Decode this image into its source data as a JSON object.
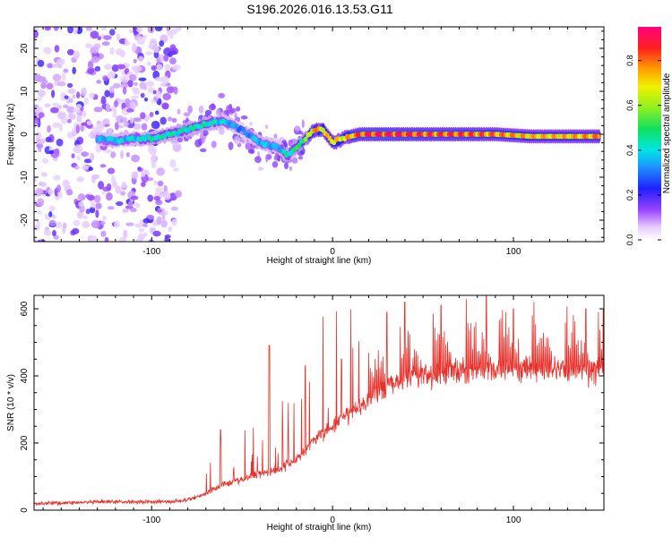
{
  "title": "S196.2026.016.13.53.G11",
  "colors": {
    "snr_line": "#e8302a",
    "axis": "#000000",
    "colormap": [
      "#f2e6ff",
      "#c8a4f0",
      "#7b2de0",
      "#2d1cd8",
      "#1890f0",
      "#20e0e0",
      "#30e870",
      "#b8f020",
      "#f0e020",
      "#f08a20",
      "#f02020",
      "#f0106a"
    ]
  },
  "chart_data": [
    {
      "type": "heatmap",
      "name": "spectrogram",
      "xlabel": "Height of straight line (km)",
      "ylabel": "Frequency (Hz)",
      "xlim": [
        -165,
        150
      ],
      "ylim": [
        -25,
        25
      ],
      "xticks": [
        -100,
        0,
        100
      ],
      "yticks": [
        -20,
        -10,
        0,
        10,
        20
      ],
      "colorbar": {
        "label": "Normalized spectral amplitude",
        "range": [
          0,
          0.95
        ],
        "ticks": [
          0.0,
          0.2,
          0.4,
          0.6,
          0.8
        ]
      },
      "ridge": [
        {
          "x": -130,
          "f": -1.0,
          "a": 0.35
        },
        {
          "x": -120,
          "f": -1.5,
          "a": 0.4
        },
        {
          "x": -110,
          "f": -1.0,
          "a": 0.4
        },
        {
          "x": -100,
          "f": -1.0,
          "a": 0.45
        },
        {
          "x": -90,
          "f": 0.0,
          "a": 0.45
        },
        {
          "x": -80,
          "f": 1.0,
          "a": 0.45
        },
        {
          "x": -70,
          "f": 2.5,
          "a": 0.45
        },
        {
          "x": -60,
          "f": 3.0,
          "a": 0.4
        },
        {
          "x": -50,
          "f": 1.0,
          "a": 0.3
        },
        {
          "x": -40,
          "f": -2.0,
          "a": 0.4
        },
        {
          "x": -30,
          "f": -3.0,
          "a": 0.35
        },
        {
          "x": -25,
          "f": -5.0,
          "a": 0.45
        },
        {
          "x": -20,
          "f": -3.0,
          "a": 0.5
        },
        {
          "x": -15,
          "f": -1.0,
          "a": 0.55
        },
        {
          "x": -10,
          "f": 1.0,
          "a": 0.8
        },
        {
          "x": -5,
          "f": 1.0,
          "a": 0.7
        },
        {
          "x": 0,
          "f": -2.0,
          "a": 0.75
        },
        {
          "x": 5,
          "f": -1.0,
          "a": 0.7
        },
        {
          "x": 15,
          "f": 0.0,
          "a": 0.85
        },
        {
          "x": 30,
          "f": 0.0,
          "a": 0.9
        },
        {
          "x": 50,
          "f": 0.0,
          "a": 0.85
        },
        {
          "x": 70,
          "f": 0.0,
          "a": 0.85
        },
        {
          "x": 90,
          "f": 0.0,
          "a": 0.8
        },
        {
          "x": 110,
          "f": -0.5,
          "a": 0.75
        },
        {
          "x": 130,
          "f": -0.5,
          "a": 0.75
        },
        {
          "x": 148,
          "f": -0.5,
          "a": 0.8
        }
      ]
    },
    {
      "type": "line",
      "name": "snr",
      "xlabel": "Height of straight line (km)",
      "ylabel": "SNR (10 * v/v)",
      "xlim": [
        -165,
        150
      ],
      "ylim": [
        0,
        640
      ],
      "xticks": [
        -100,
        0,
        100
      ],
      "yticks": [
        0,
        200,
        400,
        600
      ],
      "series": [
        {
          "name": "SNR",
          "envelope": [
            {
              "x": -165,
              "y": 20
            },
            {
              "x": -120,
              "y": 25
            },
            {
              "x": -90,
              "y": 25
            },
            {
              "x": -80,
              "y": 30
            },
            {
              "x": -70,
              "y": 50
            },
            {
              "x": -60,
              "y": 80
            },
            {
              "x": -50,
              "y": 90
            },
            {
              "x": -40,
              "y": 110
            },
            {
              "x": -30,
              "y": 120
            },
            {
              "x": -20,
              "y": 150
            },
            {
              "x": -10,
              "y": 210
            },
            {
              "x": 0,
              "y": 250
            },
            {
              "x": 10,
              "y": 290
            },
            {
              "x": 20,
              "y": 330
            },
            {
              "x": 30,
              "y": 370
            },
            {
              "x": 40,
              "y": 395
            },
            {
              "x": 60,
              "y": 410
            },
            {
              "x": 80,
              "y": 415
            },
            {
              "x": 100,
              "y": 420
            },
            {
              "x": 120,
              "y": 420
            },
            {
              "x": 150,
              "y": 415
            }
          ],
          "peaks": [
            {
              "x": -62,
              "y": 240
            },
            {
              "x": -35,
              "y": 490
            },
            {
              "x": -15,
              "y": 430
            },
            {
              "x": 5,
              "y": 450
            },
            {
              "x": 30,
              "y": 590
            },
            {
              "x": 40,
              "y": 620
            },
            {
              "x": 60,
              "y": 610
            },
            {
              "x": 85,
              "y": 640
            },
            {
              "x": 100,
              "y": 600
            },
            {
              "x": 140,
              "y": 600
            }
          ]
        }
      ]
    }
  ]
}
